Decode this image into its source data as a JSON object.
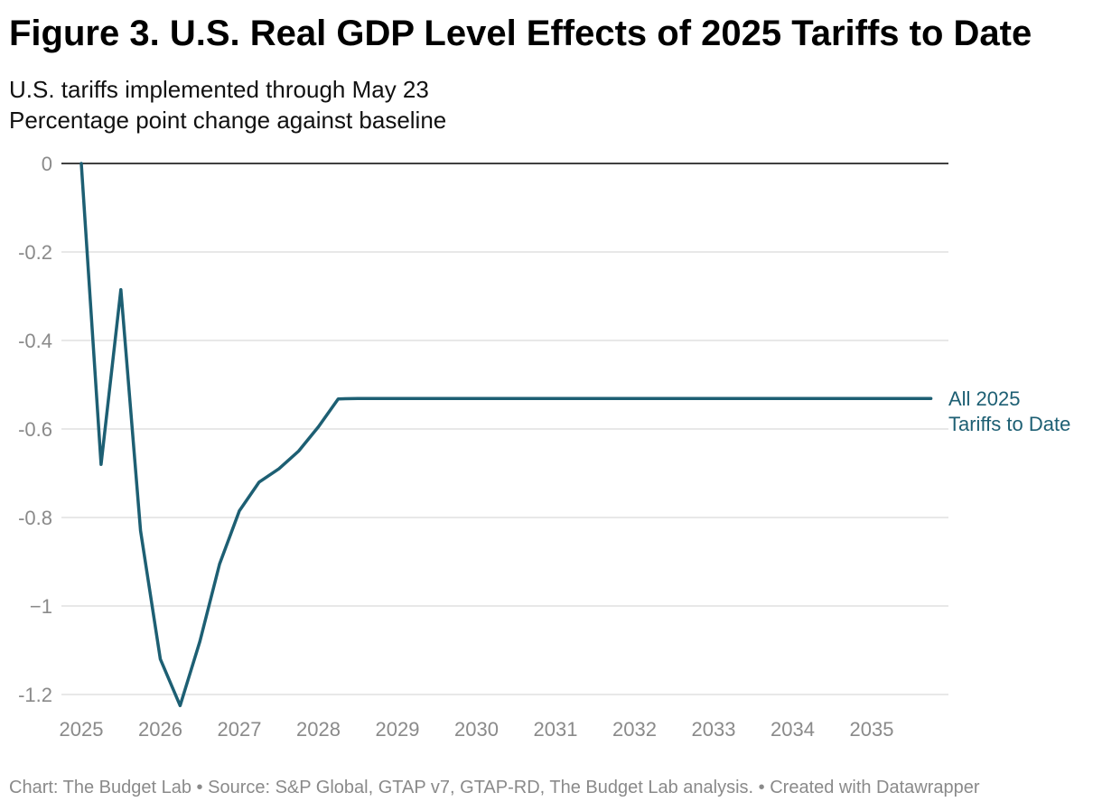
{
  "title": "Figure 3. U.S. Real GDP Level Effects of 2025 Tariffs to Date",
  "subtitle_lines": [
    "U.S. tariffs implemented through May 23",
    "Percentage point change against baseline"
  ],
  "footer": {
    "text": "Chart: The Budget Lab • Source: S&P Global, GTAP v7, GTAP-RD, The Budget Lab analysis. • Created with Datawrapper"
  },
  "chart_data": {
    "type": "line",
    "title": "Figure 3. U.S. Real GDP Level Effects of 2025 Tariffs to Date",
    "subtitle": "U.S. tariffs implemented through May 23",
    "ylabel": "Percentage point change against baseline",
    "xlabel": "",
    "xlim": [
      2025,
      2036
    ],
    "ylim": [
      -1.25,
      0
    ],
    "x_ticks": [
      2025,
      2026,
      2027,
      2028,
      2029,
      2030,
      2031,
      2032,
      2033,
      2034,
      2035
    ],
    "x_tick_labels": [
      "2025",
      "2026",
      "2027",
      "2028",
      "2029",
      "2030",
      "2031",
      "2032",
      "2033",
      "2034",
      "2035"
    ],
    "y_ticks": [
      0,
      -0.2,
      -0.4,
      -0.6,
      -0.8,
      -1,
      -1.2
    ],
    "y_tick_labels": [
      "0",
      "-0.2",
      "-0.4",
      "-0.6",
      "-0.8",
      "−1",
      "-1.2"
    ],
    "grid": true,
    "legend": "inline-right",
    "series": [
      {
        "name": "All 2025 Tariffs to Date",
        "label_lines": [
          "All 2025",
          "Tariffs to Date"
        ],
        "color": "#1d5f73",
        "x": [
          2025.0,
          2025.25,
          2025.5,
          2025.75,
          2026.0,
          2026.25,
          2026.5,
          2026.75,
          2027.0,
          2027.25,
          2027.5,
          2027.75,
          2028.0,
          2028.25,
          2028.5,
          2029.0,
          2030.0,
          2031.0,
          2032.0,
          2033.0,
          2034.0,
          2035.0,
          2035.75
        ],
        "y": [
          0,
          -0.68,
          -0.285,
          -0.83,
          -1.12,
          -1.225,
          -1.08,
          -0.905,
          -0.785,
          -0.72,
          -0.69,
          -0.65,
          -0.595,
          -0.532,
          -0.531,
          -0.531,
          -0.531,
          -0.531,
          -0.531,
          -0.531,
          -0.531,
          -0.531,
          -0.531
        ]
      }
    ],
    "zero_line_color": "#000000",
    "grid_color": "#e0e0e0",
    "tick_color": "#8a8a8a"
  }
}
